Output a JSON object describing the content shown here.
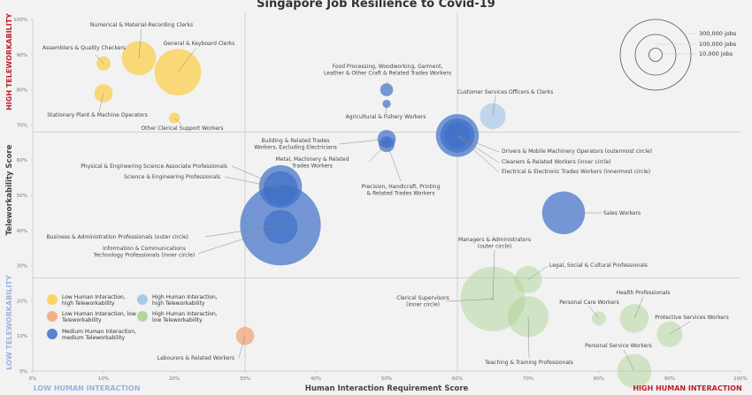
{
  "chart_data": {
    "type": "scatter",
    "subtype": "bubble",
    "title": "Singapore Job Resilience to Covid-19",
    "xlabel": "Human Interaction Requirement Score",
    "ylabel": "Teleworkability Score",
    "xlim": [
      0,
      100
    ],
    "ylim": [
      0,
      100
    ],
    "x_ticks": [
      "0%",
      "10%",
      "20%",
      "30%",
      "40%",
      "50%",
      "60%",
      "70%",
      "80%",
      "90%",
      "100%"
    ],
    "y_ticks": [
      "0%",
      "10%",
      "20%",
      "30%",
      "40%",
      "50%",
      "60%",
      "70%",
      "80%",
      "90%",
      "100%"
    ],
    "quadrant_dividers": {
      "x": [
        30,
        60
      ],
      "y": [
        26.5,
        68
      ]
    },
    "zone_labels": {
      "x_low": "LOW HUMAN INTERACTION",
      "x_high": "HIGH HUMAN INTERACTION",
      "y_low": "LOW TELEWORKABILITY",
      "y_high": "HIGH TELEWORKABILITY"
    },
    "colors": {
      "low_hi_high_tw": "#f9cf4e",
      "low_hi_low_tw": "#f0a675",
      "medium": "#3f6fc7",
      "high_hi_high_tw": "#9dc1e6",
      "high_hi_low_tw": "#a9d18e",
      "zone_high": "#c0202a",
      "zone_low": "#9ab3e0"
    },
    "legend": [
      {
        "key": "low_hi_high_tw",
        "label_line1": "Low Human Interaction,",
        "label_line2": "high Teleworkability"
      },
      {
        "key": "low_hi_low_tw",
        "label_line1": "Low Human Interaction, low",
        "label_line2": "Teleworkability"
      },
      {
        "key": "medium",
        "label_line1": "Medium Human Interaction,",
        "label_line2": "medium Teleworkability"
      },
      {
        "key": "high_hi_high_tw",
        "label_line1": "High Human Interaction,",
        "label_line2": "high Teleworkability"
      },
      {
        "key": "high_hi_low_tw",
        "label_line1": "High Human Interaction,",
        "label_line2": "low Teleworkability"
      }
    ],
    "size_legend": [
      {
        "jobs": 300000,
        "label": "300,000 jobs"
      },
      {
        "jobs": 100000,
        "label": "100,000 jobs"
      },
      {
        "jobs": 10000,
        "label": "10,000 jobs"
      }
    ],
    "points": [
      {
        "name": "Numerical & Material-Recording Clerks",
        "x": 15,
        "y": 89,
        "jobs": 70000,
        "group": "low_hi_high_tw"
      },
      {
        "name": "General & Keyboard Clerks",
        "x": 20.5,
        "y": 85,
        "jobs": 130000,
        "group": "low_hi_high_tw"
      },
      {
        "name": "Assemblers & Quality Checkers",
        "x": 10,
        "y": 87.5,
        "jobs": 12000,
        "group": "low_hi_high_tw"
      },
      {
        "name": "Stationary Plant & Machine Operators",
        "x": 10,
        "y": 79,
        "jobs": 20000,
        "group": "low_hi_high_tw"
      },
      {
        "name": "Other Clerical Support Workers",
        "x": 20,
        "y": 72,
        "jobs": 7000,
        "group": "low_hi_high_tw"
      },
      {
        "name": "Food Processing, Woodworking, Garment, Leather & Other Craft & Related Trades Workers",
        "x": 50,
        "y": 80,
        "jobs": 10000,
        "group": "medium"
      },
      {
        "name": "Agricultural & Fishery Workers",
        "x": 50,
        "y": 76,
        "jobs": 4000,
        "group": "medium"
      },
      {
        "name": "Customer Services Officers & Clerks",
        "x": 65,
        "y": 72.5,
        "jobs": 40000,
        "group": "high_hi_high_tw"
      },
      {
        "name": "Building & Related Trades Workers, Excluding Electricians",
        "x": 50,
        "y": 66,
        "jobs": 20000,
        "group": "medium"
      },
      {
        "name": "Metal, Machinery & Related Trades Workers",
        "x": 50,
        "y": 64.5,
        "jobs": 15000,
        "group": "medium"
      },
      {
        "name": "Precision, Handicraft, Printing & Related Trades Workers",
        "x": 50,
        "y": 65,
        "jobs": 5000,
        "group": "medium"
      },
      {
        "name": "Drivers & Mobile Machinery Operators (outermost circle)",
        "x": 60,
        "y": 67,
        "jobs": 110000,
        "group": "medium"
      },
      {
        "name": "Cleaners & Related Workers (inner circle)",
        "x": 60,
        "y": 67,
        "jobs": 70000,
        "group": "medium"
      },
      {
        "name": "Electrical & Electronic Trades Workers (innermost circle)",
        "x": 60,
        "y": 67,
        "jobs": 40000,
        "group": "medium"
      },
      {
        "name": "Physical & Engineering Science Associate Professionals",
        "x": 35,
        "y": 52.5,
        "jobs": 110000,
        "group": "medium"
      },
      {
        "name": "Science & Engineering Professionals",
        "x": 35,
        "y": 52,
        "jobs": 70000,
        "group": "medium"
      },
      {
        "name": "Business & Administration Professionals (outer circle)",
        "x": 35,
        "y": 41.5,
        "jobs": 390000,
        "group": "medium"
      },
      {
        "name": "Information & Communications Technology Professionals (inner circle)",
        "x": 35,
        "y": 41,
        "jobs": 70000,
        "group": "medium"
      },
      {
        "name": "Sales Workers",
        "x": 75,
        "y": 45,
        "jobs": 110000,
        "group": "medium"
      },
      {
        "name": "Managers & Administrators (outer circle)",
        "x": 65,
        "y": 20.5,
        "jobs": 250000,
        "group": "high_hi_low_tw"
      },
      {
        "name": "Clerical Supervisors (inner circle)",
        "x": 65,
        "y": 20.5,
        "jobs": 1000,
        "group": "high_hi_low_tw"
      },
      {
        "name": "Legal, Social & Cultural Professionals",
        "x": 70,
        "y": 26,
        "jobs": 45000,
        "group": "high_hi_low_tw"
      },
      {
        "name": "Teaching & Training Professionals",
        "x": 70,
        "y": 15.5,
        "jobs": 100000,
        "group": "high_hi_low_tw"
      },
      {
        "name": "Personal Care Workers",
        "x": 80,
        "y": 15,
        "jobs": 12000,
        "group": "high_hi_low_tw"
      },
      {
        "name": "Health Professionals",
        "x": 85,
        "y": 15,
        "jobs": 50000,
        "group": "high_hi_low_tw"
      },
      {
        "name": "Protective Services Workers",
        "x": 90,
        "y": 10.5,
        "jobs": 40000,
        "group": "high_hi_low_tw"
      },
      {
        "name": "Personal Service Workers",
        "x": 85,
        "y": 0,
        "jobs": 70000,
        "group": "high_hi_low_tw"
      },
      {
        "name": "Labourers & Related Workers",
        "x": 30,
        "y": 10,
        "jobs": 20000,
        "group": "low_hi_low_tw"
      }
    ]
  }
}
